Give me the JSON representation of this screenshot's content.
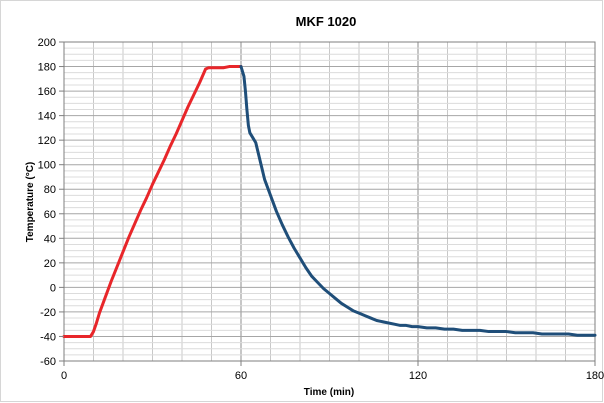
{
  "chart_data": {
    "type": "line",
    "title": "MKF 1020",
    "xlabel": "Time (min)",
    "ylabel": "Temperature (°C)",
    "xlim": [
      0,
      180
    ],
    "ylim": [
      -60,
      200
    ],
    "x_ticks": [
      0,
      60,
      120,
      180
    ],
    "y_ticks": [
      -60,
      -40,
      -20,
      0,
      20,
      40,
      60,
      80,
      100,
      120,
      140,
      160,
      180,
      200
    ],
    "grid": true,
    "legend": "none",
    "series": [
      {
        "color": "#e8262a",
        "points": [
          [
            0,
            -40
          ],
          [
            9,
            -40
          ],
          [
            10,
            -36
          ],
          [
            11,
            -29
          ],
          [
            12,
            -21
          ],
          [
            14,
            -8
          ],
          [
            16,
            5
          ],
          [
            18,
            17
          ],
          [
            20,
            29
          ],
          [
            22,
            41
          ],
          [
            24,
            52
          ],
          [
            26,
            63
          ],
          [
            28,
            73
          ],
          [
            30,
            84
          ],
          [
            32,
            94
          ],
          [
            34,
            104
          ],
          [
            36,
            115
          ],
          [
            38,
            125
          ],
          [
            40,
            136
          ],
          [
            42,
            147
          ],
          [
            44,
            157
          ],
          [
            46,
            167
          ],
          [
            48,
            178
          ],
          [
            49,
            179
          ],
          [
            50,
            179
          ],
          [
            54,
            179
          ],
          [
            56,
            180
          ],
          [
            60,
            180
          ]
        ]
      },
      {
        "color": "#1f4e79",
        "points": [
          [
            60,
            180
          ],
          [
            61,
            172
          ],
          [
            61.5,
            160
          ],
          [
            62,
            145
          ],
          [
            62.5,
            132
          ],
          [
            63,
            126
          ],
          [
            64,
            122
          ],
          [
            65,
            118
          ],
          [
            66,
            108
          ],
          [
            67,
            98
          ],
          [
            68,
            88
          ],
          [
            70,
            75
          ],
          [
            72,
            62
          ],
          [
            74,
            51
          ],
          [
            76,
            41
          ],
          [
            78,
            32
          ],
          [
            80,
            24
          ],
          [
            82,
            16
          ],
          [
            84,
            9
          ],
          [
            86,
            4
          ],
          [
            88,
            -1
          ],
          [
            90,
            -5
          ],
          [
            92,
            -9
          ],
          [
            94,
            -13
          ],
          [
            96,
            -16
          ],
          [
            98,
            -19
          ],
          [
            100,
            -21
          ],
          [
            102,
            -23
          ],
          [
            104,
            -25
          ],
          [
            106,
            -27
          ],
          [
            108,
            -28
          ],
          [
            110,
            -29
          ],
          [
            112,
            -30
          ],
          [
            114,
            -31
          ],
          [
            116,
            -31
          ],
          [
            118,
            -32
          ],
          [
            120,
            -32
          ],
          [
            123,
            -33
          ],
          [
            126,
            -33
          ],
          [
            129,
            -34
          ],
          [
            132,
            -34
          ],
          [
            135,
            -35
          ],
          [
            138,
            -35
          ],
          [
            141,
            -35
          ],
          [
            144,
            -36
          ],
          [
            147,
            -36
          ],
          [
            150,
            -36
          ],
          [
            153,
            -37
          ],
          [
            156,
            -37
          ],
          [
            159,
            -37
          ],
          [
            162,
            -38
          ],
          [
            165,
            -38
          ],
          [
            168,
            -38
          ],
          [
            171,
            -38
          ],
          [
            174,
            -39
          ],
          [
            177,
            -39
          ],
          [
            180,
            -39
          ]
        ]
      }
    ]
  }
}
